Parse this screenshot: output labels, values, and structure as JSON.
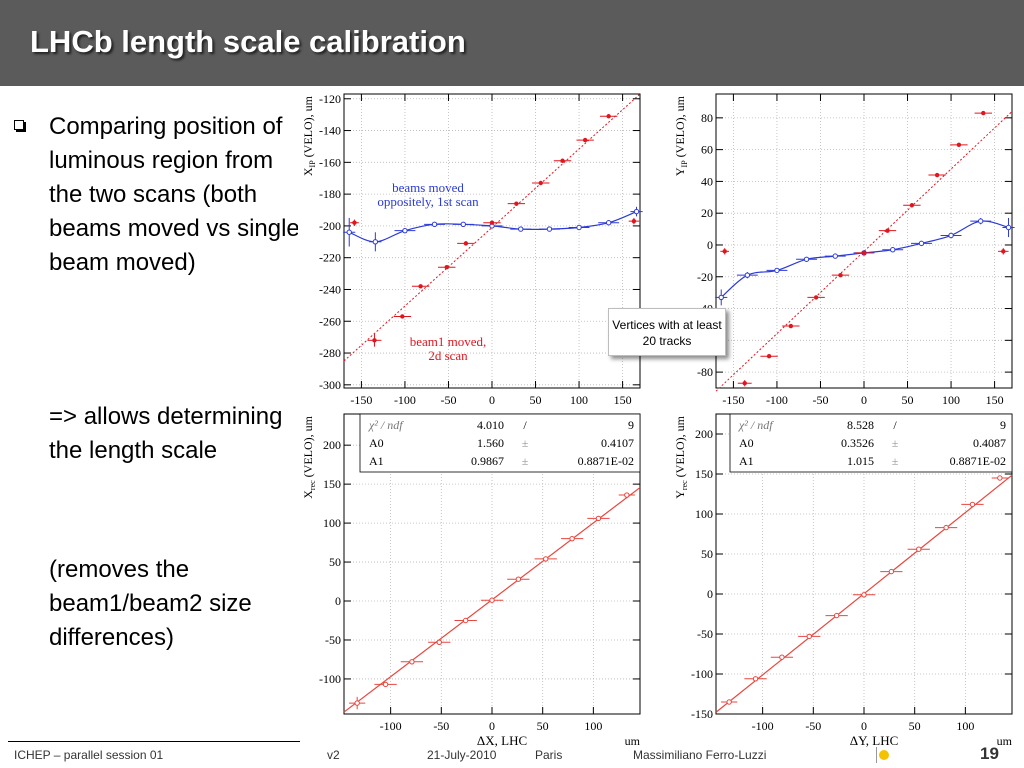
{
  "slide": {
    "title": "LHCb length scale calibration",
    "bullets": [
      "Comparing position of luminous region from the two scans (both beams moved vs single beam moved)",
      "=> allows determining the length scale",
      "(removes the beam1/beam2 size differences)"
    ],
    "callout": "Vertices with at least 20 tracks",
    "footer": {
      "session": "ICHEP – parallel session 01",
      "version": "v2",
      "date": "21-July-2010",
      "place": "Paris",
      "author": "Massimiliano Ferro-Luzzi",
      "page": "19"
    }
  },
  "colors": {
    "title_bar": "#5b5b5b",
    "beams_moved": "#2b3ad8",
    "beam1_moved": "#e0161e",
    "fit": "#e8463e",
    "accent": "#f3c300"
  },
  "chart_data": [
    {
      "id": "x-ip",
      "type": "scatter",
      "ylabel_main": "X",
      "ylabel_sub": "IP",
      "ylabel_rest": " (VELO), um",
      "xticks": [
        -150,
        -100,
        -50,
        0,
        50,
        100,
        150
      ],
      "yticks": [
        -120,
        -140,
        -160,
        -180,
        -200,
        -220,
        -240,
        -260,
        -280,
        -300
      ],
      "xlim": [
        -170,
        170
      ],
      "ylim": [
        -302,
        -117
      ],
      "series": [
        {
          "name_lines": [
            "beams moved",
            "oppositely, 1st scan"
          ],
          "color": "#2b3ad8",
          "marker": "circle-open",
          "smooth": true,
          "x": [
            -164,
            -134,
            -100,
            -66,
            -33,
            0,
            33,
            66,
            100,
            134,
            166
          ],
          "y": [
            -204,
            -210,
            -203,
            -199,
            -199,
            -200,
            -202,
            -202,
            -201,
            -198,
            -191
          ],
          "xerr": [
            7,
            7,
            12,
            12,
            12,
            12,
            12,
            12,
            12,
            12,
            7
          ],
          "yerr": [
            9,
            6,
            1,
            1,
            1,
            1,
            1,
            1,
            1,
            1,
            3
          ]
        },
        {
          "name_lines": [
            "beam1 moved,",
            "2d scan"
          ],
          "color": "#e0161e",
          "marker": "dot",
          "smooth": false,
          "x": [
            -158,
            -135,
            -103,
            -82,
            -52,
            -30,
            0,
            28,
            56,
            81,
            107,
            134,
            163
          ],
          "y": [
            -198,
            -272,
            -257,
            -238,
            -226,
            -211,
            -198,
            -186,
            -173,
            -159,
            -146,
            -131,
            -197
          ],
          "xerr": [
            5,
            8,
            10,
            10,
            10,
            10,
            10,
            10,
            10,
            10,
            10,
            10,
            6
          ],
          "yerr": [
            2,
            4,
            1,
            1,
            1,
            1,
            1,
            1,
            1,
            1,
            1,
            1,
            2
          ]
        }
      ],
      "reference_line": {
        "x": [
          -170,
          170
        ],
        "y": [
          -285,
          -117
        ]
      }
    },
    {
      "id": "y-ip",
      "type": "scatter",
      "ylabel_main": "Y",
      "ylabel_sub": "IP",
      "ylabel_rest": " (VELO), um",
      "xticks": [
        -150,
        -100,
        -50,
        0,
        50,
        100,
        150
      ],
      "yticks": [
        80,
        60,
        40,
        20,
        0,
        -20,
        -40,
        -60,
        -80
      ],
      "xlim": [
        -170,
        170
      ],
      "ylim": [
        -90,
        95
      ],
      "series": [
        {
          "color": "#2b3ad8",
          "marker": "circle-open",
          "smooth": true,
          "x": [
            -164,
            -134,
            -100,
            -66,
            -33,
            0,
            33,
            66,
            100,
            134,
            166
          ],
          "y": [
            -33,
            -19,
            -16,
            -9,
            -7,
            -5,
            -3,
            1,
            6,
            15,
            11
          ],
          "xerr": [
            7,
            12,
            12,
            12,
            12,
            12,
            12,
            12,
            12,
            12,
            7
          ],
          "yerr": [
            5,
            2,
            1,
            1,
            1,
            1,
            1,
            1,
            1,
            2,
            6
          ]
        },
        {
          "color": "#e0161e",
          "marker": "dot",
          "smooth": false,
          "x": [
            -160,
            -137,
            -109,
            -84,
            -55,
            -27,
            0,
            27,
            55,
            84,
            109,
            137,
            160
          ],
          "y": [
            -4,
            -87,
            -70,
            -51,
            -33,
            -19,
            -5,
            9,
            25,
            44,
            63,
            83,
            -4
          ],
          "xerr": [
            5,
            8,
            10,
            10,
            10,
            10,
            10,
            10,
            10,
            10,
            10,
            10,
            6
          ],
          "yerr": [
            2,
            2,
            1,
            1,
            1,
            1,
            1,
            1,
            1,
            1,
            1,
            1,
            2
          ]
        }
      ],
      "reference_line": {
        "x": [
          -170,
          170
        ],
        "y": [
          -92,
          84
        ]
      }
    },
    {
      "id": "x-rec",
      "type": "scatter",
      "ylabel_main": "X",
      "ylabel_sub": "rec",
      "ylabel_rest": " (VELO), um",
      "xlabel": "ΔX, LHC",
      "unit_label": "um",
      "xticks": [
        -100,
        -50,
        0,
        50,
        100
      ],
      "yticks": [
        200,
        150,
        100,
        50,
        0,
        -50,
        -100
      ],
      "xlim": [
        -146,
        146
      ],
      "ylim": [
        -145,
        240
      ],
      "stats": {
        "rows": [
          [
            "χ² / ndf",
            "4.010",
            "/",
            "9"
          ],
          [
            "A0",
            "1.560",
            "±",
            "0.4107"
          ],
          [
            "A1",
            "0.9867",
            "±",
            "0.8871E-02"
          ]
        ]
      },
      "fit": {
        "x": [
          -146,
          146
        ],
        "y": [
          -142.5,
          145.6
        ]
      },
      "points": {
        "color": "#e8463e",
        "x": [
          -133,
          -105,
          -79,
          -52,
          -26,
          0,
          26,
          53,
          79,
          105,
          133
        ],
        "y": [
          -131,
          -107,
          -78,
          -53,
          -25,
          1,
          28,
          54,
          80,
          106,
          136
        ],
        "xerr": [
          8,
          11,
          11,
          11,
          11,
          11,
          11,
          11,
          11,
          11,
          8
        ],
        "yerr": [
          8,
          2,
          1,
          1,
          1,
          1,
          1,
          1,
          1,
          1,
          2
        ]
      }
    },
    {
      "id": "y-rec",
      "type": "scatter",
      "ylabel_main": "Y",
      "ylabel_sub": "rec",
      "ylabel_rest": " (VELO), um",
      "xlabel": "ΔY, LHC",
      "unit_label": "um",
      "xticks": [
        -100,
        -50,
        0,
        50,
        100
      ],
      "yticks": [
        200,
        150,
        100,
        50,
        0,
        -50,
        -100,
        -150
      ],
      "xlim": [
        -146,
        146
      ],
      "ylim": [
        -150,
        225
      ],
      "stats": {
        "rows": [
          [
            "χ² / ndf",
            "8.528",
            "/",
            "9"
          ],
          [
            "A0",
            "0.3526",
            "±",
            "0.4087"
          ],
          [
            "A1",
            "1.015",
            "±",
            "0.8871E-02"
          ]
        ]
      },
      "fit": {
        "x": [
          -146,
          146
        ],
        "y": [
          -147.8,
          148.5
        ]
      },
      "points": {
        "color": "#e8463e",
        "x": [
          -133,
          -107,
          -81,
          -54,
          -27,
          0,
          27,
          54,
          81,
          107,
          134
        ],
        "y": [
          -135,
          -106,
          -79,
          -53,
          -27,
          -1,
          28,
          56,
          83,
          112,
          145
        ],
        "xerr": [
          8,
          11,
          11,
          11,
          11,
          11,
          11,
          11,
          11,
          11,
          8
        ],
        "yerr": [
          2,
          1,
          1,
          1,
          1,
          1,
          1,
          1,
          1,
          1,
          2
        ]
      }
    }
  ]
}
